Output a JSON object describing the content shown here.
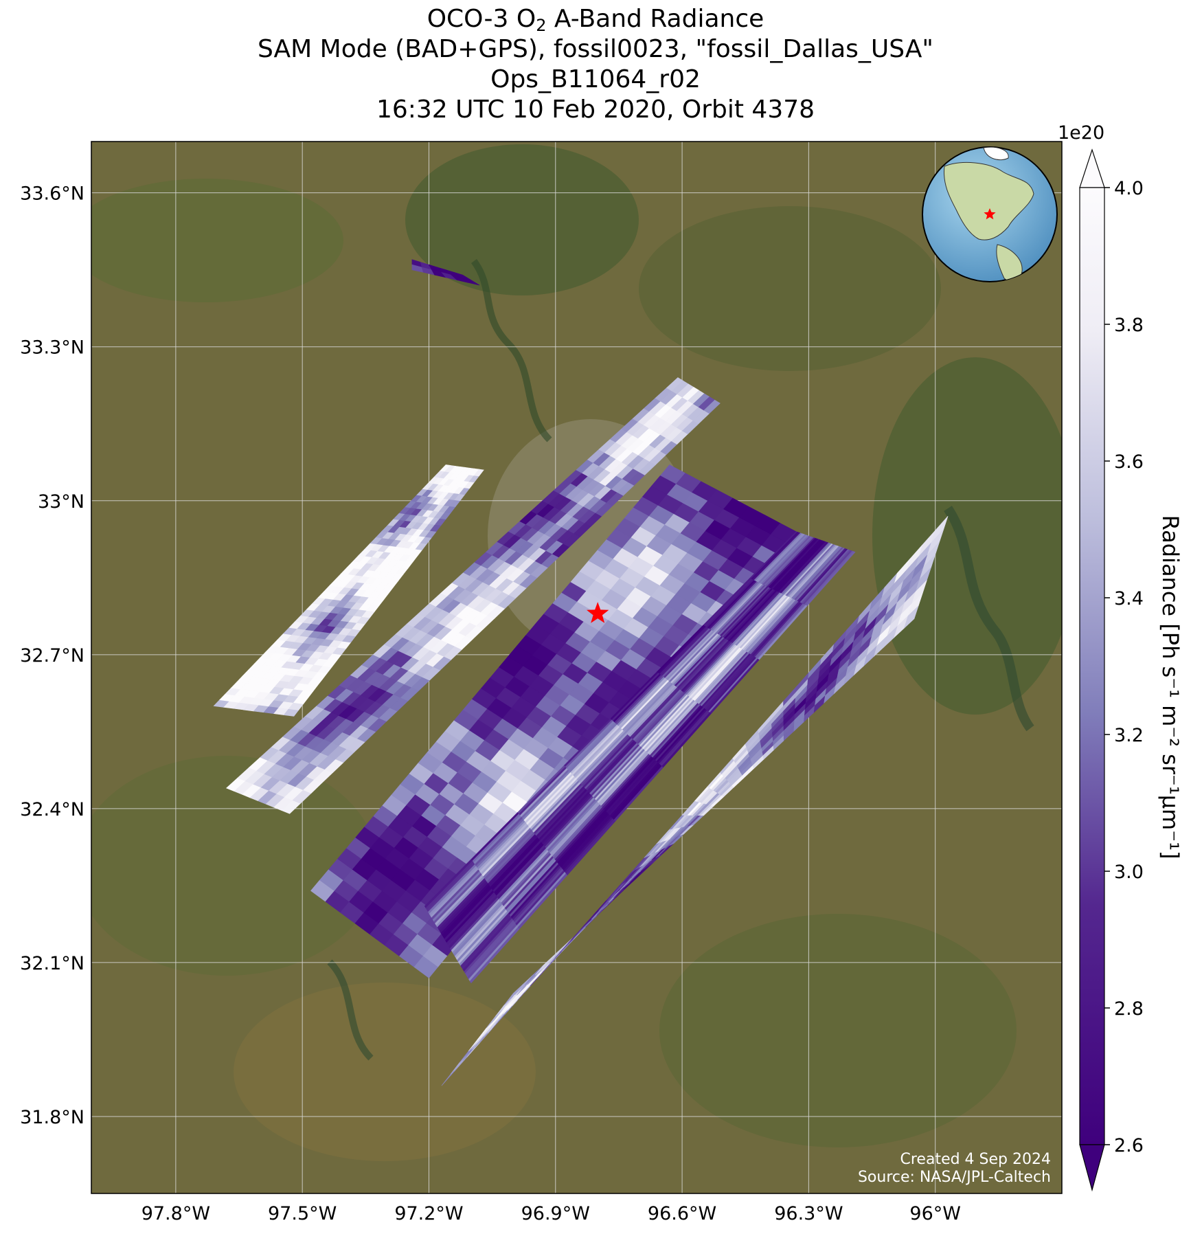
{
  "title": {
    "line1_pre": "OCO-3 O",
    "line1_sub": "2",
    "line1_post": " A-Band Radiance",
    "line2": "SAM Mode (BAD+GPS), fossil0023, \"fossil_Dallas_USA\"",
    "line3": "Ops_B11064_r02",
    "line4": "16:32 UTC 10 Feb 2020, Orbit 4378"
  },
  "map": {
    "lon_range": [
      -98.0,
      -95.7
    ],
    "lat_range": [
      31.65,
      33.7
    ],
    "lat_ticks": [
      "33.6°N",
      "33.3°N",
      "33°N",
      "32.7°N",
      "32.4°N",
      "32.1°N",
      "31.8°N"
    ],
    "lon_ticks": [
      "97.8°W",
      "97.5°W",
      "97.2°W",
      "96.9°W",
      "96.6°W",
      "96.3°W",
      "96°W"
    ],
    "grid": true,
    "background": "satellite imagery (Dallas–Fort Worth region)",
    "target_marker": {
      "lon": -96.8,
      "lat": 32.78,
      "color": "#ff0000",
      "shape": "star"
    },
    "inset": {
      "type": "globe",
      "region": "North America",
      "marker_color": "#ff0000"
    }
  },
  "chart_data": {
    "type": "heatmap",
    "variable": "O2 A-Band Radiance",
    "colormap": "Purples_r",
    "vmin": 2.6,
    "vmax": 4.0,
    "scale_exponent": "1e20",
    "swaths": [
      {
        "corners_lonlat": [
          [
            -97.71,
            32.6
          ],
          [
            -97.16,
            33.07
          ],
          [
            -97.07,
            33.06
          ],
          [
            -97.52,
            32.58
          ]
        ],
        "mean": 3.75
      },
      {
        "corners_lonlat": [
          [
            -97.68,
            32.44
          ],
          [
            -96.61,
            33.24
          ],
          [
            -96.51,
            33.19
          ],
          [
            -97.53,
            32.39
          ]
        ],
        "mean": 3.4
      },
      {
        "corners_lonlat": [
          [
            -97.48,
            32.24
          ],
          [
            -96.63,
            33.07
          ],
          [
            -96.33,
            32.94
          ],
          [
            -97.2,
            32.07
          ]
        ],
        "mean": 3.15
      },
      {
        "corners_lonlat": [
          [
            -96.33,
            32.94
          ],
          [
            -96.19,
            32.9
          ],
          [
            -97.1,
            32.06
          ],
          [
            -97.21,
            32.21
          ]
        ],
        "mean": 3.1
      },
      {
        "corners_lonlat": [
          [
            -97.17,
            31.86
          ],
          [
            -95.97,
            32.97
          ],
          [
            -96.05,
            32.77
          ],
          [
            -97.0,
            32.04
          ]
        ],
        "mean": 3.3
      },
      {
        "corners_lonlat": [
          [
            -97.24,
            33.47
          ],
          [
            -97.12,
            33.44
          ],
          [
            -97.08,
            33.42
          ],
          [
            -97.24,
            33.45
          ]
        ],
        "mean": 2.75
      }
    ],
    "colorbar": {
      "ticks": [
        "2.6",
        "2.8",
        "3.0",
        "3.2",
        "3.4",
        "3.6",
        "3.8",
        "4.0"
      ],
      "label": "Radiance [Ph s⁻¹ m⁻² sr⁻¹μm⁻¹]",
      "offset_text": "1e20",
      "extend": "both"
    }
  },
  "credits": {
    "line1": "Created 4 Sep 2024",
    "line2": "Source: NASA/JPL-Caltech"
  }
}
